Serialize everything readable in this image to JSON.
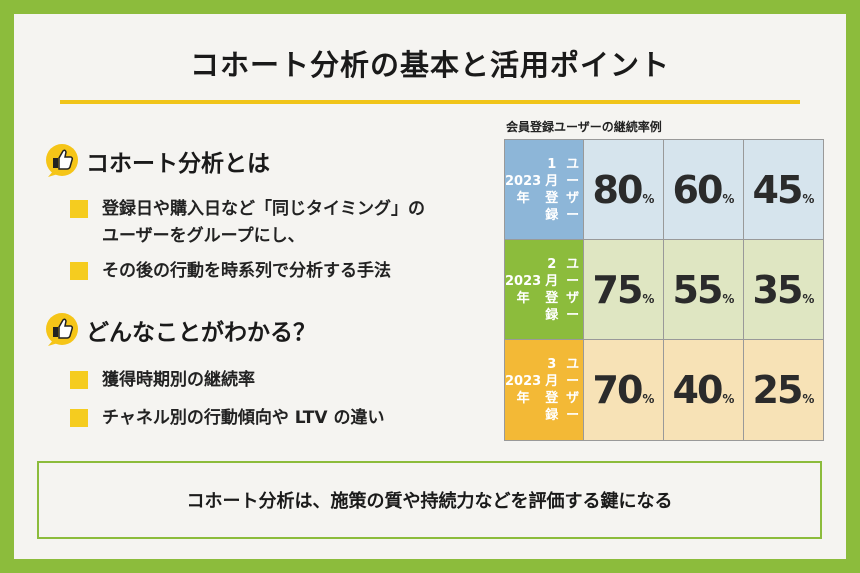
{
  "title": "コホート分析の基本と活用ポイント",
  "section1": {
    "heading": "コホート分析とは",
    "bullets": [
      [
        "登録日や購入日など「同じタイミング」の",
        "ユーザーをグループにし、"
      ],
      [
        "その後の行動を時系列で分析する手法"
      ]
    ]
  },
  "section2": {
    "heading": "どんなことがわかる？",
    "bullets": [
      [
        "獲得時期別の継続率"
      ],
      [
        "チャネル別の行動傾向や LTV の違い"
      ]
    ]
  },
  "grid": {
    "caption": "会員登録ユーザーの継続率例",
    "pct_symbol": "%",
    "rows": [
      {
        "label": [
          "2023 年",
          "1 月登録",
          "ユーザー"
        ],
        "label_color": "#8db6d8",
        "cell_color": "#d6e4ed",
        "values": [
          "80",
          "60",
          "45"
        ]
      },
      {
        "label": [
          "2023 年",
          "2 月登録",
          "ユーザー"
        ],
        "label_color": "#8cbc3c",
        "cell_color": "#dfe6c2",
        "values": [
          "75",
          "55",
          "35"
        ]
      },
      {
        "label": [
          "2023 年",
          "3 月登録",
          "ユーザー"
        ],
        "label_color": "#f3b936",
        "cell_color": "#f7e2b6",
        "values": [
          "70",
          "40",
          "25"
        ]
      }
    ]
  },
  "summary": "コホート分析は、施策の質や持続力などを評価する鍵になる",
  "icons": [
    "thumbs-up-icon",
    "thumbs-up-icon"
  ]
}
